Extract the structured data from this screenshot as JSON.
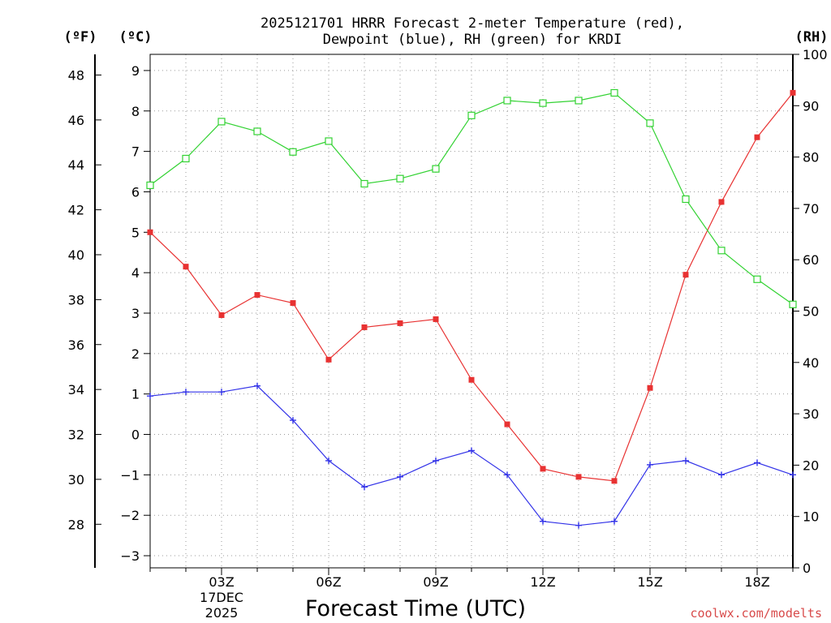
{
  "chart_data": {
    "type": "line",
    "title_lines": [
      "2025121701 HRRR Forecast 2-meter Temperature (red),",
      "Dewpoint (blue), RH (green) for KRDI"
    ],
    "xlabel": "Forecast Time (UTC)",
    "credit": "coolwx.com/modelts",
    "axis_units": {
      "f": "(ºF)",
      "c": "(ºC)",
      "rh": "(RH)"
    },
    "x": [
      1,
      2,
      3,
      4,
      5,
      6,
      7,
      8,
      9,
      10,
      11,
      12,
      13,
      14,
      15,
      16,
      17,
      18,
      19
    ],
    "xlim": [
      1,
      19
    ],
    "x_ticks": [
      {
        "x": 3,
        "label": "03Z"
      },
      {
        "x": 6,
        "label": "06Z"
      },
      {
        "x": 9,
        "label": "09Z"
      },
      {
        "x": 12,
        "label": "12Z"
      },
      {
        "x": 15,
        "label": "15Z"
      },
      {
        "x": 18,
        "label": "18Z"
      }
    ],
    "date_label": [
      "17DEC",
      "2025"
    ],
    "left_c_axis": {
      "ylim": [
        -3.3,
        9.4
      ],
      "ticks": [
        -3,
        -2,
        -1,
        0,
        1,
        2,
        3,
        4,
        5,
        6,
        7,
        8,
        9
      ]
    },
    "left_f_axis": {
      "ticks": [
        28,
        30,
        32,
        34,
        36,
        38,
        40,
        42,
        44,
        46,
        48
      ]
    },
    "right_rh_axis": {
      "ylim": [
        0,
        100
      ],
      "ticks": [
        0,
        10,
        20,
        30,
        40,
        50,
        60,
        70,
        80,
        90,
        100
      ]
    },
    "series": [
      {
        "name": "Temperature",
        "axis": "c",
        "color": "#e83232",
        "marker": "filled-square",
        "values": [
          5.0,
          4.15,
          2.95,
          3.45,
          3.25,
          1.85,
          2.65,
          2.75,
          2.85,
          1.35,
          0.25,
          -0.85,
          -1.05,
          -1.15,
          1.15,
          3.95,
          5.75,
          7.35,
          8.45
        ]
      },
      {
        "name": "Dewpoint",
        "axis": "c",
        "color": "#3232e8",
        "marker": "plus",
        "values": [
          0.95,
          1.05,
          1.05,
          1.2,
          0.35,
          -0.65,
          -1.3,
          -1.05,
          -0.65,
          -0.4,
          -1.0,
          -2.15,
          -2.25,
          -2.15,
          -0.75,
          -0.65,
          -1.0,
          -0.7,
          -1.0
        ]
      },
      {
        "name": "RH",
        "axis": "rh",
        "color": "#32d232",
        "marker": "open-square",
        "values": [
          74.5,
          79.7,
          86.9,
          85.0,
          81.0,
          83.1,
          74.8,
          75.8,
          77.7,
          88.1,
          91.0,
          90.5,
          91.0,
          92.5,
          86.6,
          71.8,
          61.8,
          56.2,
          51.3
        ]
      }
    ]
  }
}
